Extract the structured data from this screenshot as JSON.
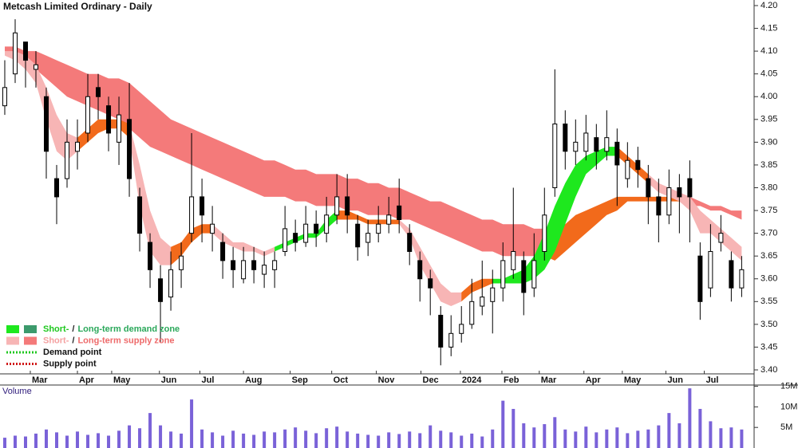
{
  "chart_data": [
    {
      "type": "candlestick",
      "title": "Metcash Limited Ordinary - Daily",
      "categories": [
        null,
        null,
        null,
        null,
        null,
        null,
        null,
        null,
        null,
        null,
        null,
        null,
        null,
        null,
        null,
        null,
        null,
        null,
        null,
        null,
        null,
        null,
        null,
        null,
        null,
        null,
        null,
        null,
        null,
        null,
        null,
        null,
        null,
        null,
        null,
        null,
        null,
        null,
        null,
        null,
        null,
        null,
        null,
        null,
        null,
        null,
        null,
        null,
        null,
        null,
        null,
        null,
        null,
        null,
        null,
        null,
        null,
        null,
        null,
        null,
        null,
        null,
        null,
        null,
        null,
        null,
        null,
        null,
        null,
        null,
        null,
        null
      ],
      "open": [
        3.98,
        4.05,
        4.12,
        4.06,
        4.0,
        3.82,
        3.82,
        3.88,
        3.92,
        4.02,
        3.98,
        3.9,
        3.95,
        3.78,
        3.68,
        3.6,
        3.56,
        3.62,
        3.7,
        3.78,
        3.7,
        3.68,
        3.64,
        3.6,
        3.64,
        3.61,
        3.62,
        3.66,
        3.7,
        3.68,
        3.72,
        3.7,
        3.74,
        3.78,
        3.72,
        3.68,
        3.7,
        3.72,
        3.76,
        3.7,
        3.64,
        3.6,
        3.52,
        3.45,
        3.48,
        3.5,
        3.54,
        3.55,
        3.58,
        3.62,
        3.64,
        3.58,
        3.66,
        3.8,
        3.94,
        3.88,
        3.88,
        3.91,
        3.88,
        3.9,
        3.82,
        3.86,
        3.82,
        3.78,
        3.74,
        3.8,
        3.82,
        3.65,
        3.58,
        3.68,
        3.64,
        3.58
      ],
      "high": [
        4.08,
        4.17,
        4.12,
        4.1,
        4.02,
        3.85,
        3.95,
        3.95,
        4.05,
        4.05,
        4.0,
        4.0,
        4.03,
        3.8,
        3.7,
        3.63,
        3.66,
        3.68,
        3.92,
        3.82,
        3.76,
        3.7,
        3.67,
        3.67,
        3.67,
        3.66,
        3.66,
        3.76,
        3.73,
        3.76,
        3.75,
        3.78,
        3.83,
        3.83,
        3.74,
        3.73,
        3.76,
        3.78,
        3.82,
        3.72,
        3.66,
        3.62,
        3.54,
        3.52,
        3.54,
        3.6,
        3.64,
        3.62,
        3.68,
        3.8,
        3.66,
        3.7,
        3.8,
        4.06,
        3.97,
        3.95,
        3.96,
        3.94,
        3.97,
        3.93,
        3.9,
        3.89,
        3.85,
        3.82,
        3.84,
        3.83,
        3.86,
        3.68,
        3.72,
        3.74,
        3.66,
        3.65
      ],
      "low": [
        3.96,
        4.03,
        4.02,
        4.02,
        3.82,
        3.72,
        3.8,
        3.84,
        3.9,
        3.95,
        3.88,
        3.85,
        3.78,
        3.66,
        3.58,
        3.46,
        3.53,
        3.58,
        3.68,
        3.68,
        3.66,
        3.6,
        3.58,
        3.59,
        3.59,
        3.58,
        3.58,
        3.65,
        3.66,
        3.67,
        3.67,
        3.68,
        3.72,
        3.7,
        3.64,
        3.65,
        3.68,
        3.7,
        3.7,
        3.63,
        3.55,
        3.52,
        3.41,
        3.43,
        3.46,
        3.49,
        3.52,
        3.48,
        3.55,
        3.6,
        3.52,
        3.56,
        3.64,
        3.78,
        3.84,
        3.85,
        3.86,
        3.84,
        3.86,
        3.76,
        3.8,
        3.8,
        3.72,
        3.68,
        3.72,
        3.7,
        3.68,
        3.51,
        3.56,
        3.66,
        3.55,
        3.56
      ],
      "close": [
        4.02,
        4.14,
        4.08,
        4.07,
        3.88,
        3.78,
        3.9,
        3.9,
        4.0,
        4.0,
        3.92,
        3.96,
        3.82,
        3.7,
        3.62,
        3.55,
        3.62,
        3.65,
        3.78,
        3.74,
        3.72,
        3.64,
        3.62,
        3.64,
        3.62,
        3.63,
        3.64,
        3.71,
        3.68,
        3.72,
        3.7,
        3.74,
        3.78,
        3.74,
        3.67,
        3.7,
        3.72,
        3.74,
        3.73,
        3.66,
        3.6,
        3.58,
        3.45,
        3.48,
        3.5,
        3.55,
        3.56,
        3.58,
        3.64,
        3.66,
        3.57,
        3.64,
        3.74,
        3.94,
        3.88,
        3.9,
        3.92,
        3.88,
        3.91,
        3.85,
        3.86,
        3.84,
        3.78,
        3.74,
        3.8,
        3.78,
        3.78,
        3.55,
        3.66,
        3.7,
        3.58,
        3.62
      ],
      "bands": [
        {
          "color": "#f47a7a",
          "x0": 0,
          "upper": [
            4.11,
            4.11,
            4.1,
            4.1,
            4.09,
            4.08,
            4.07,
            4.06,
            4.05,
            4.05,
            4.04,
            4.04,
            4.03,
            4.01,
            3.99,
            3.97,
            3.95,
            3.94,
            3.93,
            3.92,
            3.91,
            3.9,
            3.89,
            3.88,
            3.87,
            3.86,
            3.86,
            3.85,
            3.84,
            3.84,
            3.83,
            3.83,
            3.83,
            3.82,
            3.82,
            3.81,
            3.81,
            3.8,
            3.8,
            3.79,
            3.78,
            3.77,
            3.77,
            3.76,
            3.75,
            3.74,
            3.73,
            3.73,
            3.72,
            3.72,
            3.72,
            3.71,
            3.71
          ],
          "lower": [
            4.1,
            4.09,
            4.08,
            4.06,
            4.04,
            4.02,
            4.0,
            3.99,
            3.98,
            3.97,
            3.96,
            3.95,
            3.93,
            3.91,
            3.89,
            3.88,
            3.87,
            3.86,
            3.85,
            3.84,
            3.83,
            3.82,
            3.81,
            3.8,
            3.79,
            3.78,
            3.78,
            3.78,
            3.77,
            3.77,
            3.76,
            3.76,
            3.76,
            3.75,
            3.75,
            3.74,
            3.74,
            3.74,
            3.73,
            3.73,
            3.72,
            3.71,
            3.7,
            3.69,
            3.68,
            3.67,
            3.66,
            3.66,
            3.65,
            3.65,
            3.65,
            3.65,
            3.65
          ]
        },
        {
          "color": "#f26a1b",
          "x0": 52,
          "upper": [
            3.71,
            3.71,
            3.72,
            3.74,
            3.75,
            3.76,
            3.77,
            3.78,
            3.78,
            3.78,
            3.78,
            3.78,
            3.78,
            3.78
          ],
          "lower": [
            3.65,
            3.64,
            3.66,
            3.68,
            3.7,
            3.72,
            3.74,
            3.75,
            3.77,
            3.77,
            3.77,
            3.77,
            3.77,
            3.77
          ]
        },
        {
          "color": "#f47a7a",
          "x0": 65,
          "upper": [
            3.78,
            3.78,
            3.77,
            3.76,
            3.76,
            3.75,
            3.75
          ],
          "lower": [
            3.77,
            3.76,
            3.76,
            3.75,
            3.75,
            3.74,
            3.73
          ]
        },
        {
          "color": "#f7b5b5",
          "x0": 0,
          "upper": [
            4.1,
            4.1,
            4.09,
            4.07,
            4.02,
            3.96,
            3.92,
            3.91
          ],
          "lower": [
            4.09,
            4.08,
            4.06,
            4.03,
            3.95,
            3.88,
            3.86,
            3.88
          ]
        },
        {
          "color": "#f26a1b",
          "x0": 7,
          "upper": [
            3.91,
            3.93,
            3.95,
            3.95,
            3.95,
            3.94
          ],
          "lower": [
            3.88,
            3.9,
            3.92,
            3.93,
            3.93,
            3.91
          ]
        },
        {
          "color": "#f7b5b5",
          "x0": 12,
          "upper": [
            3.94,
            3.85,
            3.75,
            3.69,
            3.67
          ],
          "lower": [
            3.91,
            3.76,
            3.66,
            3.63,
            3.63
          ]
        },
        {
          "color": "#f26a1b",
          "x0": 16,
          "upper": [
            3.67,
            3.68,
            3.71,
            3.72,
            3.72
          ],
          "lower": [
            3.63,
            3.65,
            3.68,
            3.7,
            3.7
          ]
        },
        {
          "color": "#f7b5b5",
          "x0": 20,
          "upper": [
            3.72,
            3.7,
            3.68,
            3.68,
            3.67,
            3.66,
            3.67
          ],
          "lower": [
            3.7,
            3.68,
            3.67,
            3.66,
            3.66,
            3.65,
            3.66
          ]
        },
        {
          "color": "#1ee81e",
          "x0": 26,
          "upper": [
            3.67,
            3.68,
            3.69,
            3.7,
            3.7,
            3.73,
            3.75
          ],
          "lower": [
            3.66,
            3.67,
            3.68,
            3.69,
            3.69,
            3.71,
            3.73
          ]
        },
        {
          "color": "#f26a1b",
          "x0": 32,
          "upper": [
            3.75,
            3.75,
            3.74,
            3.73,
            3.73,
            3.73,
            3.73
          ],
          "lower": [
            3.73,
            3.73,
            3.73,
            3.72,
            3.72,
            3.72,
            3.72
          ]
        },
        {
          "color": "#f7b5b5",
          "x0": 38,
          "upper": [
            3.73,
            3.71,
            3.67,
            3.63,
            3.59,
            3.57,
            3.57
          ],
          "lower": [
            3.72,
            3.69,
            3.63,
            3.59,
            3.55,
            3.54,
            3.55
          ]
        },
        {
          "color": "#f26a1b",
          "x0": 44,
          "upper": [
            3.57,
            3.59,
            3.6,
            3.6
          ],
          "lower": [
            3.55,
            3.57,
            3.58,
            3.59
          ]
        },
        {
          "color": "#1ee81e",
          "x0": 47,
          "upper": [
            3.6,
            3.6,
            3.61,
            3.62,
            3.65,
            3.7,
            3.76,
            3.81,
            3.85,
            3.87,
            3.88,
            3.89,
            3.89
          ],
          "lower": [
            3.59,
            3.59,
            3.59,
            3.59,
            3.6,
            3.62,
            3.66,
            3.72,
            3.78,
            3.83,
            3.85,
            3.87,
            3.87
          ]
        },
        {
          "color": "#f26a1b",
          "x0": 59,
          "upper": [
            3.89,
            3.87,
            3.85,
            3.83
          ],
          "lower": [
            3.87,
            3.85,
            3.83,
            3.81
          ]
        },
        {
          "color": "#f7b5b5",
          "x0": 62,
          "upper": [
            3.83,
            3.81,
            3.8,
            3.79,
            3.78,
            3.75,
            3.73,
            3.71,
            3.69,
            3.67
          ],
          "lower": [
            3.81,
            3.79,
            3.78,
            3.77,
            3.75,
            3.7,
            3.7,
            3.68,
            3.66,
            3.64
          ]
        }
      ],
      "xlim": [
        -0.46,
        72.2
      ],
      "xticks": [
        {
          "value": 2.46,
          "label": "Mar"
        },
        {
          "value": 7.0,
          "label": "Apr"
        },
        {
          "value": 10.3,
          "label": "May"
        },
        {
          "value": 14.9,
          "label": "Jun"
        },
        {
          "value": 18.8,
          "label": "Jul"
        },
        {
          "value": 23.0,
          "label": "Aug"
        },
        {
          "value": 27.5,
          "label": "Sep"
        },
        {
          "value": 31.5,
          "label": "Oct"
        },
        {
          "value": 35.8,
          "label": "Nov"
        },
        {
          "value": 40.1,
          "label": "Dec"
        },
        {
          "value": 43.9,
          "label": "2024"
        },
        {
          "value": 47.9,
          "label": "Feb"
        },
        {
          "value": 51.5,
          "label": "Mar"
        },
        {
          "value": 55.8,
          "label": "Apr"
        },
        {
          "value": 59.5,
          "label": "May"
        },
        {
          "value": 63.7,
          "label": "Jun"
        },
        {
          "value": 67.4,
          "label": "Jul"
        }
      ],
      "ylim": [
        3.4,
        4.2
      ],
      "yticks": [
        {
          "value": 3.4,
          "label": "3.40"
        },
        {
          "value": 3.45,
          "label": "3.45"
        },
        {
          "value": 3.5,
          "label": "3.50"
        },
        {
          "value": 3.55,
          "label": "3.55"
        },
        {
          "value": 3.6,
          "label": "3.60"
        },
        {
          "value": 3.65,
          "label": "3.65"
        },
        {
          "value": 3.7,
          "label": "3.70"
        },
        {
          "value": 3.75,
          "label": "3.75"
        },
        {
          "value": 3.8,
          "label": "3.80"
        },
        {
          "value": 3.85,
          "label": "3.85"
        },
        {
          "value": 3.9,
          "label": "3.90"
        },
        {
          "value": 3.95,
          "label": "3.95"
        },
        {
          "value": 4.0,
          "label": "4.00"
        },
        {
          "value": 4.05,
          "label": "4.05"
        },
        {
          "value": 4.1,
          "label": "4.10"
        },
        {
          "value": 4.15,
          "label": "4.15"
        },
        {
          "value": 4.2,
          "label": "4.20"
        }
      ],
      "legend": [
        {
          "swatches": [
            "#1ee81e",
            "#3c9a6c"
          ],
          "texts": [
            "Short-",
            "/",
            "Long-term demand zone"
          ],
          "text_colors": [
            "#1ec81e",
            "#222222",
            "#2aa85a"
          ]
        },
        {
          "swatches": [
            "#f7b5b5",
            "#f47a7a"
          ],
          "texts": [
            "Short-",
            "/",
            "Long-term supply zone"
          ],
          "text_colors": [
            "#f4a0a0",
            "#222222",
            "#ee6a6a"
          ]
        },
        {
          "line": "#1ec81e",
          "texts": [
            "Demand point"
          ],
          "text_colors": [
            "#111111"
          ]
        },
        {
          "line": "#d01818",
          "texts": [
            "Supply point"
          ],
          "text_colors": [
            "#111111"
          ]
        }
      ]
    },
    {
      "type": "bar",
      "title": "Volume",
      "color": "#7a62d8",
      "values": [
        2500000,
        3000000,
        2800000,
        3500000,
        4500000,
        3800000,
        3000000,
        4000000,
        3200000,
        3600000,
        3000000,
        4200000,
        5500000,
        4800000,
        8500000,
        5500000,
        4000000,
        3500000,
        11800000,
        4500000,
        3800000,
        3000000,
        4200000,
        3500000,
        3200000,
        4000000,
        3800000,
        4500000,
        5000000,
        4200000,
        3600000,
        4800000,
        5200000,
        4000000,
        3500000,
        3200000,
        3000000,
        3800000,
        3400000,
        4000000,
        3600000,
        5500000,
        4200000,
        3800000,
        3000000,
        3500000,
        2800000,
        4500000,
        11500000,
        9500000,
        6000000,
        5000000,
        5800000,
        7500000,
        4500000,
        4000000,
        5200000,
        3800000,
        4500000,
        5000000,
        3600000,
        4200000,
        4500000,
        5500000,
        8500000,
        6000000,
        14500000,
        9500000,
        6500000,
        4800000,
        5000000,
        4500000
      ],
      "ylim": [
        0,
        15500000
      ],
      "yticks": [
        {
          "value": 5000000,
          "label": "5M"
        },
        {
          "value": 10000000,
          "label": "10M"
        },
        {
          "value": 15000000,
          "label": "15M"
        }
      ]
    }
  ]
}
